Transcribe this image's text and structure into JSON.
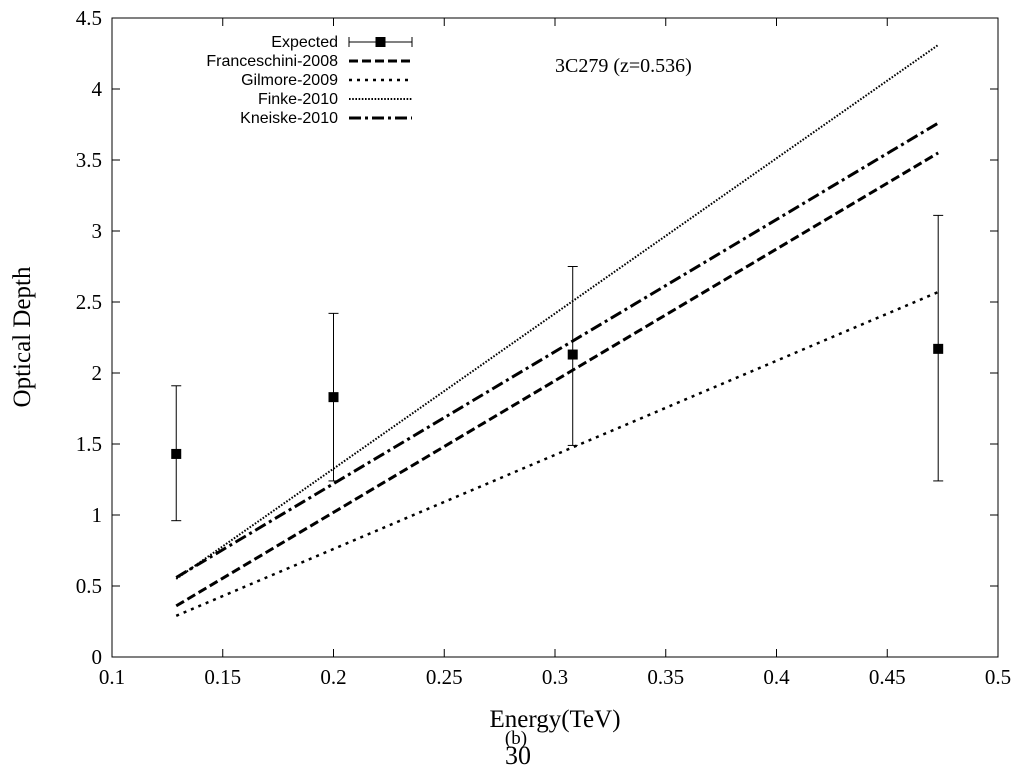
{
  "chart_data": {
    "type": "line",
    "xlabel": "Energy(TeV)",
    "ylabel": "Optical Depth",
    "xlim": [
      0.1,
      0.5
    ],
    "ylim": [
      0,
      4.5
    ],
    "xticks": [
      "0.1",
      "0.15",
      "0.2",
      "0.25",
      "0.3",
      "0.35",
      "0.4",
      "0.45",
      "0.5"
    ],
    "yticks": [
      "0",
      "0.5",
      "1",
      "1.5",
      "2",
      "2.5",
      "3",
      "3.5",
      "4",
      "4.5"
    ],
    "grid": false,
    "legend_position": "top-left",
    "annotation": "3C279 (z=0.536)",
    "series": [
      {
        "name": "Expected",
        "kind": "points-with-errorbars",
        "color": "#000000",
        "points": [
          {
            "x": 0.129,
            "y": 1.43,
            "ylow": 0.96,
            "yhigh": 1.91
          },
          {
            "x": 0.2,
            "y": 1.83,
            "ylow": 1.24,
            "yhigh": 2.42
          },
          {
            "x": 0.308,
            "y": 2.13,
            "ylow": 1.49,
            "yhigh": 2.75
          },
          {
            "x": 0.473,
            "y": 2.17,
            "ylow": 1.24,
            "yhigh": 3.11
          }
        ]
      },
      {
        "name": "Franceschini-2008",
        "kind": "line",
        "dash": "dashed",
        "color": "#000000",
        "x": [
          0.129,
          0.473
        ],
        "y": [
          0.36,
          3.55
        ]
      },
      {
        "name": "Gilmore-2009",
        "kind": "line",
        "dash": "dotted",
        "color": "#000000",
        "x": [
          0.129,
          0.473
        ],
        "y": [
          0.29,
          2.57
        ]
      },
      {
        "name": "Finke-2010",
        "kind": "line",
        "dash": "fine-dotted",
        "color": "#000000",
        "x": [
          0.129,
          0.473
        ],
        "y": [
          0.55,
          4.31
        ]
      },
      {
        "name": "Kneiske-2010",
        "kind": "line",
        "dash": "dash-dot",
        "color": "#000000",
        "x": [
          0.129,
          0.473
        ],
        "y": [
          0.56,
          3.76
        ]
      }
    ]
  },
  "caption": {
    "sub_label": "(b)",
    "page_number": "30"
  }
}
